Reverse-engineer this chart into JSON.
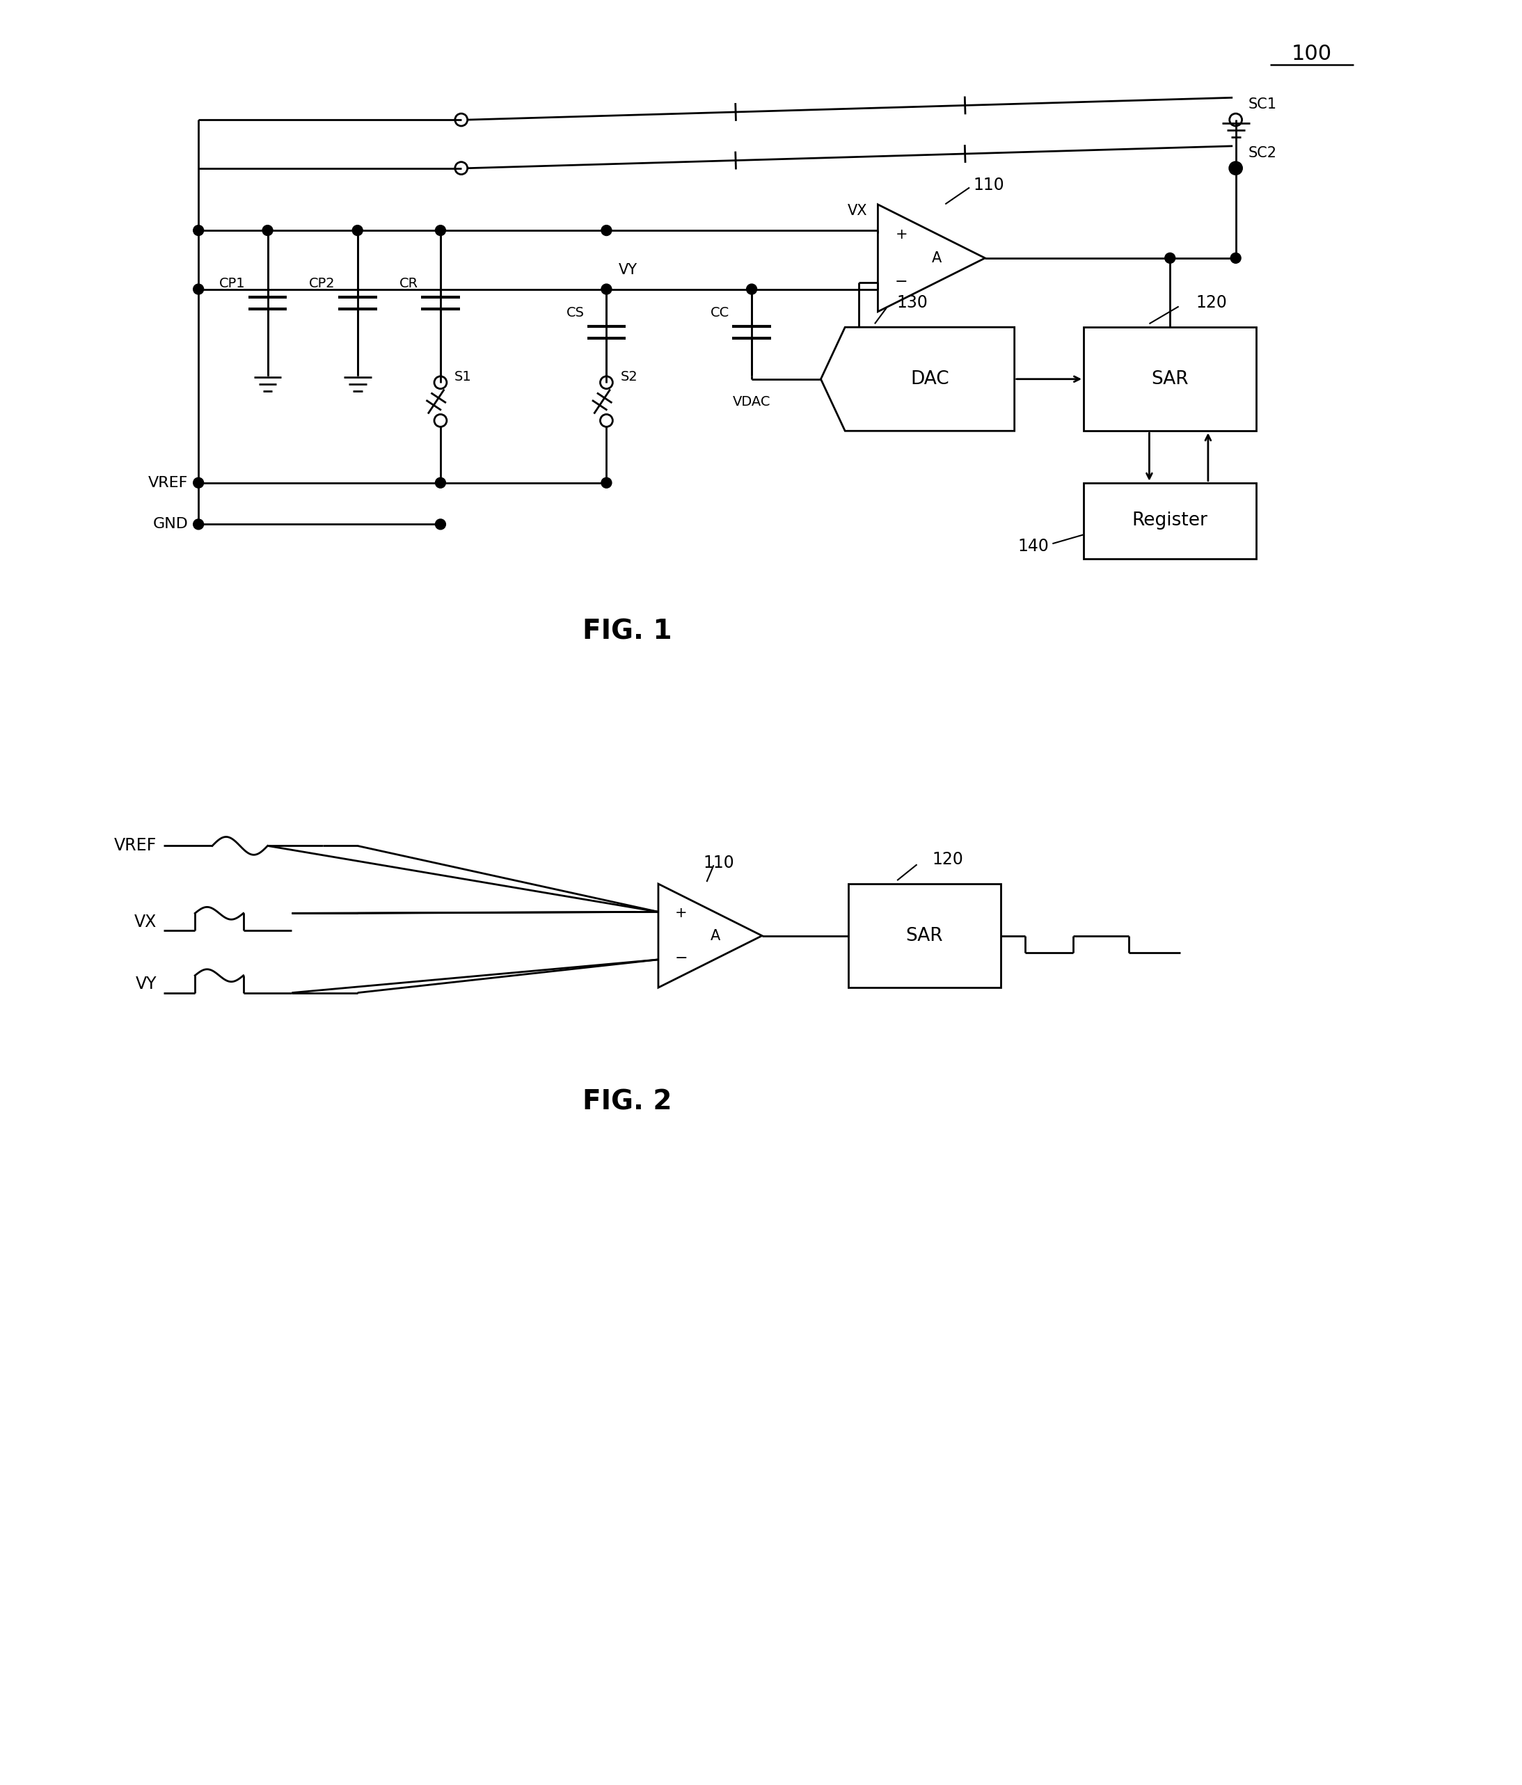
{
  "fig_width": 21.87,
  "fig_height": 25.65,
  "bg_color": "#ffffff",
  "lc": "#000000",
  "lw": 2.0,
  "ref_100": "100",
  "ref_110": "110",
  "ref_120": "120",
  "ref_130": "130",
  "ref_140": "140",
  "fig1_label": "FIG. 1",
  "fig2_label": "FIG. 2",
  "SC1": "SC1",
  "SC2": "SC2",
  "VX": "VX",
  "VY": "VY",
  "CP1": "CP1",
  "CP2": "CP2",
  "CR": "CR",
  "CS": "CS",
  "CC": "CC",
  "S1": "S1",
  "S2": "S2",
  "VDAC": "VDAC",
  "DAC": "DAC",
  "SAR": "SAR",
  "Register": "Register",
  "VREF": "VREF",
  "GND": "GND",
  "A": "A",
  "plus": "+",
  "minus": "−"
}
